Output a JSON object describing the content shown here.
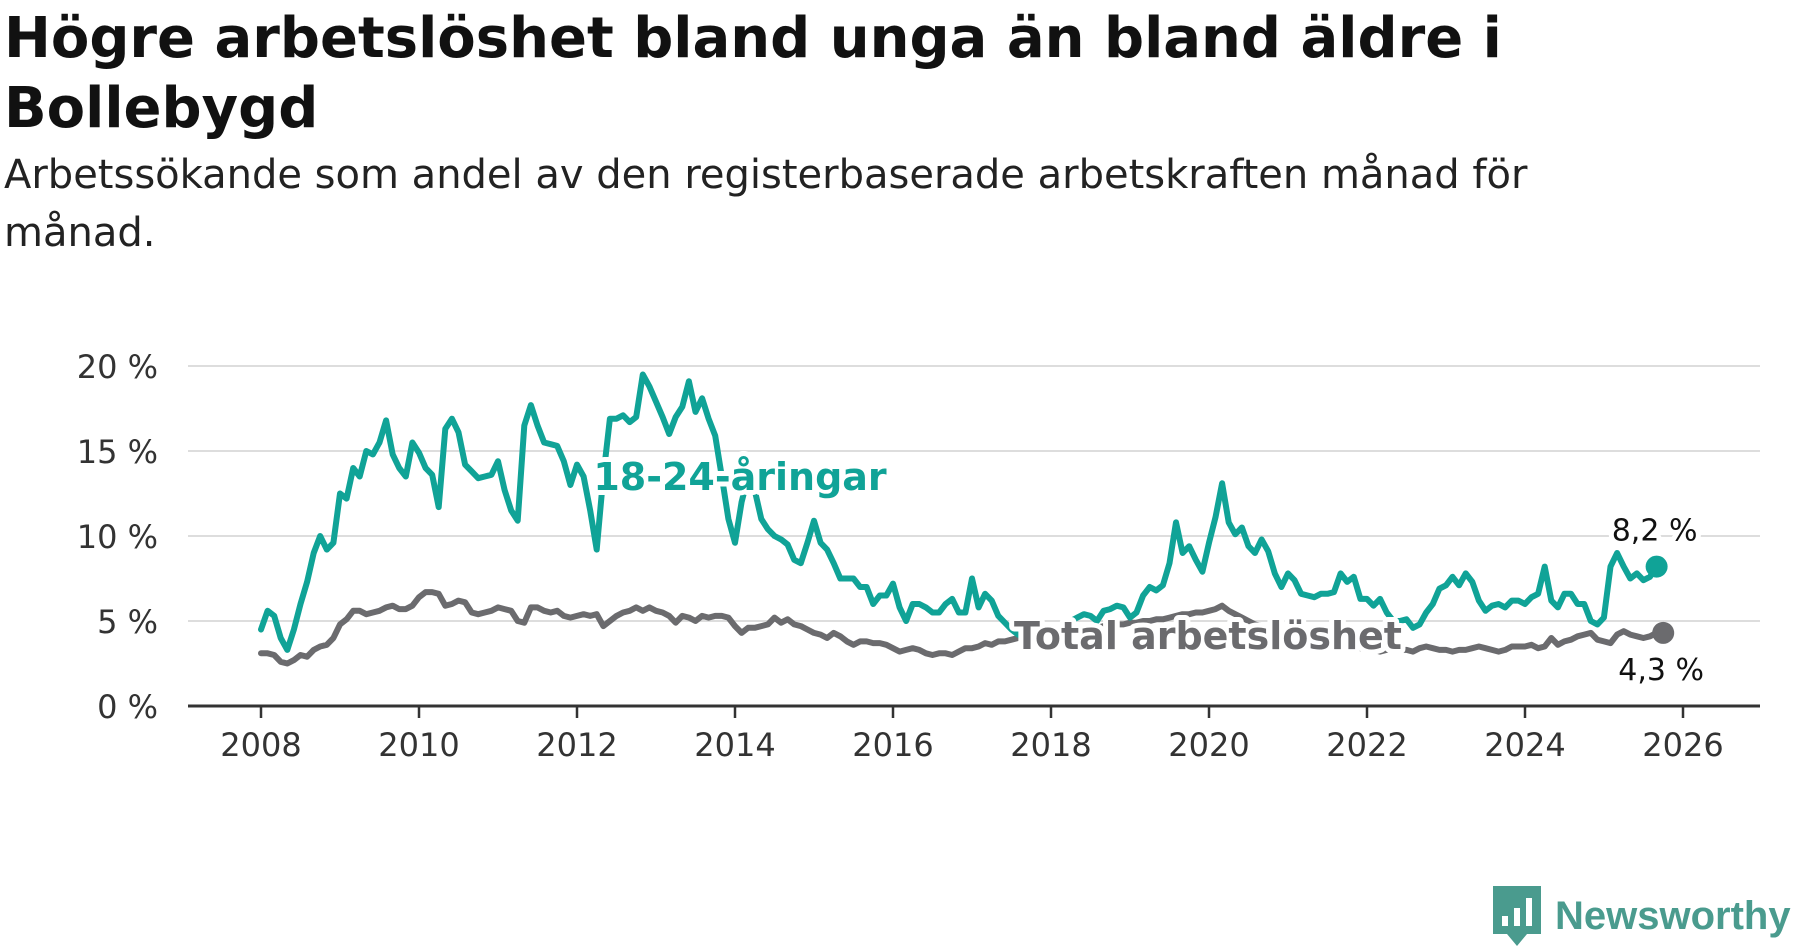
{
  "title": "Högre arbetslöshet bland unga än bland äldre i Bollebygd",
  "subtitle": "Arbetssökande som andel av den registerbaserade arbetskraften månad för månad.",
  "brand": "Newsworthy",
  "colors": {
    "youth": "#10a397",
    "total": "#6b6b6e",
    "grid": "#dddddd",
    "axis": "#333333",
    "brand": "#4a9b8e"
  },
  "chart_data": {
    "type": "line",
    "x_start": 2008.0,
    "x_step": 0.08333,
    "xlim": [
      2007.5,
      2027.0
    ],
    "ylim": [
      0,
      20
    ],
    "x_ticks": [
      2008,
      2010,
      2012,
      2014,
      2016,
      2018,
      2020,
      2022,
      2024,
      2026
    ],
    "y_ticks": [
      0,
      5,
      10,
      15,
      20
    ],
    "y_tick_labels": [
      "0 %",
      "5 %",
      "10 %",
      "15 %",
      "20 %"
    ],
    "grid": true,
    "series": [
      {
        "name": "18-24-åringar",
        "label": "18-24-åringar",
        "end_label": "8,2 %",
        "values": [
          4.5,
          5.6,
          5.3,
          4.0,
          3.3,
          4.5,
          6.0,
          7.3,
          9.0,
          10.0,
          9.2,
          9.6,
          12.5,
          12.2,
          14.0,
          13.5,
          15.0,
          14.8,
          15.5,
          16.8,
          14.8,
          14.0,
          13.5,
          15.5,
          14.9,
          14.0,
          13.6,
          11.7,
          16.3,
          16.9,
          16.1,
          14.2,
          13.8,
          13.4,
          13.5,
          13.6,
          14.4,
          12.7,
          11.5,
          10.9,
          16.5,
          17.7,
          16.5,
          15.5,
          15.4,
          15.3,
          14.4,
          13.0,
          14.2,
          13.5,
          11.5,
          9.2,
          13.5,
          16.9,
          16.9,
          17.1,
          16.7,
          17.0,
          19.5,
          18.8,
          17.9,
          17.0,
          16.0,
          17.0,
          17.6,
          19.1,
          17.3,
          18.1,
          16.9,
          15.9,
          13.5,
          11.0,
          9.6,
          12.0,
          13.5,
          12.7,
          11.0,
          10.4,
          10.0,
          9.8,
          9.5,
          8.6,
          8.4,
          9.6,
          10.9,
          9.6,
          9.2,
          8.4,
          7.5,
          7.5,
          7.5,
          7.0,
          7.0,
          6.0,
          6.5,
          6.5,
          7.2,
          5.8,
          5.0,
          6.0,
          6.0,
          5.8,
          5.5,
          5.5,
          6.0,
          6.3,
          5.5,
          5.5,
          7.5,
          5.8,
          6.6,
          6.2,
          5.3,
          4.9,
          4.5,
          4.2,
          4.0,
          4.0,
          3.8,
          4.0,
          4.2,
          4.5,
          4.7,
          5.0,
          5.2,
          5.4,
          5.3,
          5.0,
          5.6,
          5.7,
          5.9,
          5.8,
          5.2,
          5.5,
          6.5,
          7.0,
          6.8,
          7.1,
          8.4,
          10.8,
          9.0,
          9.4,
          8.6,
          7.9,
          9.6,
          11.1,
          13.1,
          10.8,
          10.1,
          10.5,
          9.4,
          9.0,
          9.8,
          9.1,
          7.8,
          7.0,
          7.8,
          7.4,
          6.6,
          6.5,
          6.4,
          6.6,
          6.6,
          6.7,
          7.8,
          7.3,
          7.6,
          6.3,
          6.3,
          5.9,
          6.3,
          5.5,
          5.0,
          5.0,
          5.1,
          4.6,
          4.8,
          5.5,
          6.0,
          6.9,
          7.1,
          7.6,
          7.1,
          7.8,
          7.3,
          6.2,
          5.6,
          5.9,
          6.0,
          5.8,
          6.2,
          6.2,
          6.0,
          6.4,
          6.6,
          8.2,
          6.2,
          5.8,
          6.6,
          6.6,
          6.0,
          6.0,
          5.0,
          4.8,
          5.2,
          8.2,
          9.0,
          8.2,
          7.5,
          7.8,
          7.4,
          7.6,
          8.2
        ]
      },
      {
        "name": "Total arbetslöshet",
        "label": "Total arbetslöshet",
        "end_label": "4,3 %",
        "values": [
          3.1,
          3.1,
          3.0,
          2.6,
          2.5,
          2.7,
          3.0,
          2.9,
          3.3,
          3.5,
          3.6,
          4.0,
          4.8,
          5.1,
          5.6,
          5.6,
          5.4,
          5.5,
          5.6,
          5.8,
          5.9,
          5.7,
          5.7,
          5.9,
          6.4,
          6.7,
          6.7,
          6.6,
          5.9,
          6.0,
          6.2,
          6.1,
          5.5,
          5.4,
          5.5,
          5.6,
          5.8,
          5.7,
          5.6,
          5.0,
          4.9,
          5.8,
          5.8,
          5.6,
          5.5,
          5.6,
          5.3,
          5.2,
          5.3,
          5.4,
          5.3,
          5.4,
          4.7,
          5.0,
          5.3,
          5.5,
          5.6,
          5.8,
          5.6,
          5.8,
          5.6,
          5.5,
          5.3,
          4.9,
          5.3,
          5.2,
          5.0,
          5.3,
          5.2,
          5.3,
          5.3,
          5.2,
          4.7,
          4.3,
          4.6,
          4.6,
          4.7,
          4.8,
          5.2,
          4.9,
          5.1,
          4.8,
          4.7,
          4.5,
          4.3,
          4.2,
          4.0,
          4.3,
          4.1,
          3.8,
          3.6,
          3.8,
          3.8,
          3.7,
          3.7,
          3.6,
          3.4,
          3.2,
          3.3,
          3.4,
          3.3,
          3.1,
          3.0,
          3.1,
          3.1,
          3.0,
          3.2,
          3.4,
          3.4,
          3.5,
          3.7,
          3.6,
          3.8,
          3.8,
          3.9,
          4.0,
          4.0,
          4.1,
          4.2,
          4.2,
          4.3,
          4.4,
          4.4,
          4.5,
          4.5,
          4.6,
          4.6,
          4.6,
          4.7,
          4.7,
          4.8,
          4.8,
          4.9,
          4.9,
          5.0,
          5.0,
          5.1,
          5.1,
          5.2,
          5.3,
          5.4,
          5.4,
          5.5,
          5.5,
          5.6,
          5.7,
          5.9,
          5.6,
          5.4,
          5.2,
          5.0,
          4.8,
          4.7,
          4.6,
          4.5,
          4.4,
          4.3,
          4.2,
          4.1,
          4.0,
          3.9,
          3.8,
          3.7,
          3.6,
          3.6,
          3.5,
          3.5,
          3.4,
          3.4,
          3.3,
          3.2,
          3.3,
          3.5,
          3.3,
          3.3,
          3.2,
          3.4,
          3.5,
          3.4,
          3.3,
          3.3,
          3.2,
          3.3,
          3.3,
          3.4,
          3.5,
          3.4,
          3.3,
          3.2,
          3.3,
          3.5,
          3.5,
          3.5,
          3.6,
          3.4,
          3.5,
          4.0,
          3.6,
          3.8,
          3.9,
          4.1,
          4.2,
          4.3,
          3.9,
          3.8,
          3.7,
          4.2,
          4.4,
          4.2,
          4.1,
          4.0,
          4.1,
          4.3,
          4.3
        ]
      }
    ]
  }
}
